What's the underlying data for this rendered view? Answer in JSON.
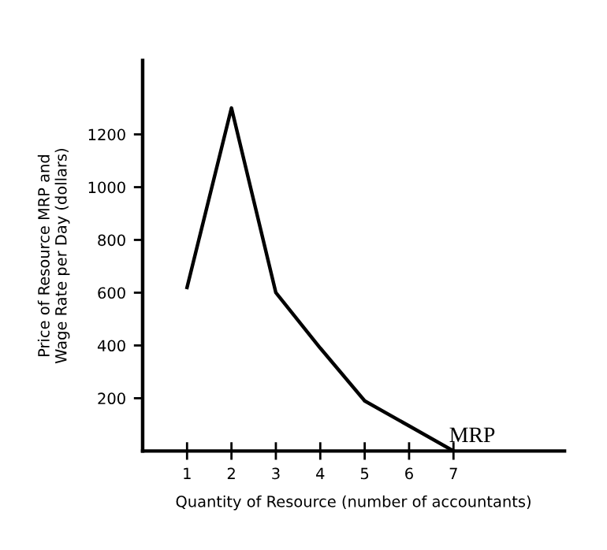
{
  "chart_data": {
    "type": "line",
    "xlabel": "Quantity of Resource (number of accountants)",
    "ylabel": "Price of Resource MRP and\nWage Rate per Day (dollars)",
    "x": [
      1,
      2,
      3,
      4,
      5,
      6,
      7
    ],
    "series": [
      {
        "name": "MRP",
        "color": "#000000",
        "values": [
          620,
          1300,
          600,
          390,
          190,
          95,
          0
        ]
      }
    ],
    "xlim": [
      0,
      9.5
    ],
    "ylim": [
      0,
      1480
    ],
    "xticks": [
      1,
      2,
      3,
      4,
      5,
      6,
      7
    ],
    "yticks": [
      200,
      400,
      600,
      800,
      1000,
      1200
    ],
    "grid": false,
    "legend": false,
    "marker": "none",
    "line_style": "solid"
  }
}
